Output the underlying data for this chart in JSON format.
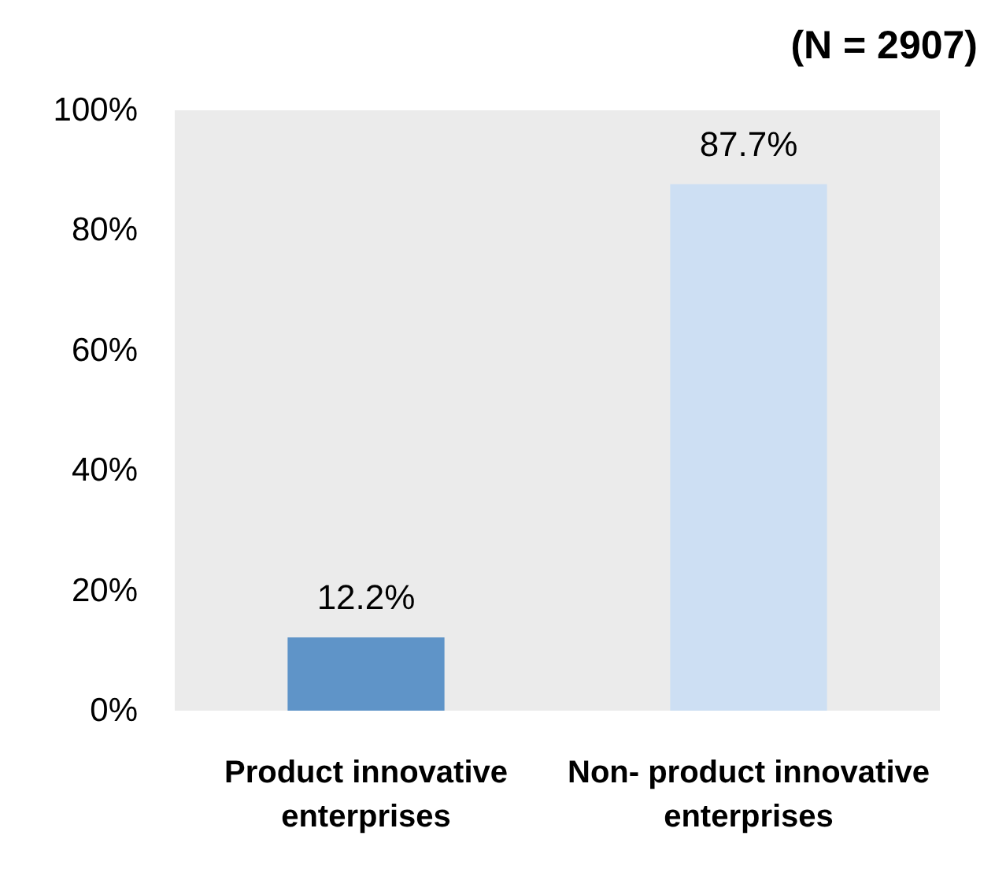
{
  "chart_data": {
    "type": "bar",
    "title": "(N = 2907)",
    "categories": [
      "Product innovative enterprises",
      "Non- product innovative enterprises"
    ],
    "values": [
      12.2,
      87.7
    ],
    "colors": [
      "#5f94c8",
      "#cddff3"
    ],
    "value_labels": [
      "12.2%",
      "87.7%"
    ],
    "ylim": [
      0,
      100
    ],
    "yticks": [
      {
        "value": 0,
        "label": "0%"
      },
      {
        "value": 20,
        "label": "20%"
      },
      {
        "value": 40,
        "label": "40%"
      },
      {
        "value": 60,
        "label": "60%"
      },
      {
        "value": 80,
        "label": "80%"
      },
      {
        "value": 100,
        "label": "100%"
      }
    ],
    "grid": false
  }
}
